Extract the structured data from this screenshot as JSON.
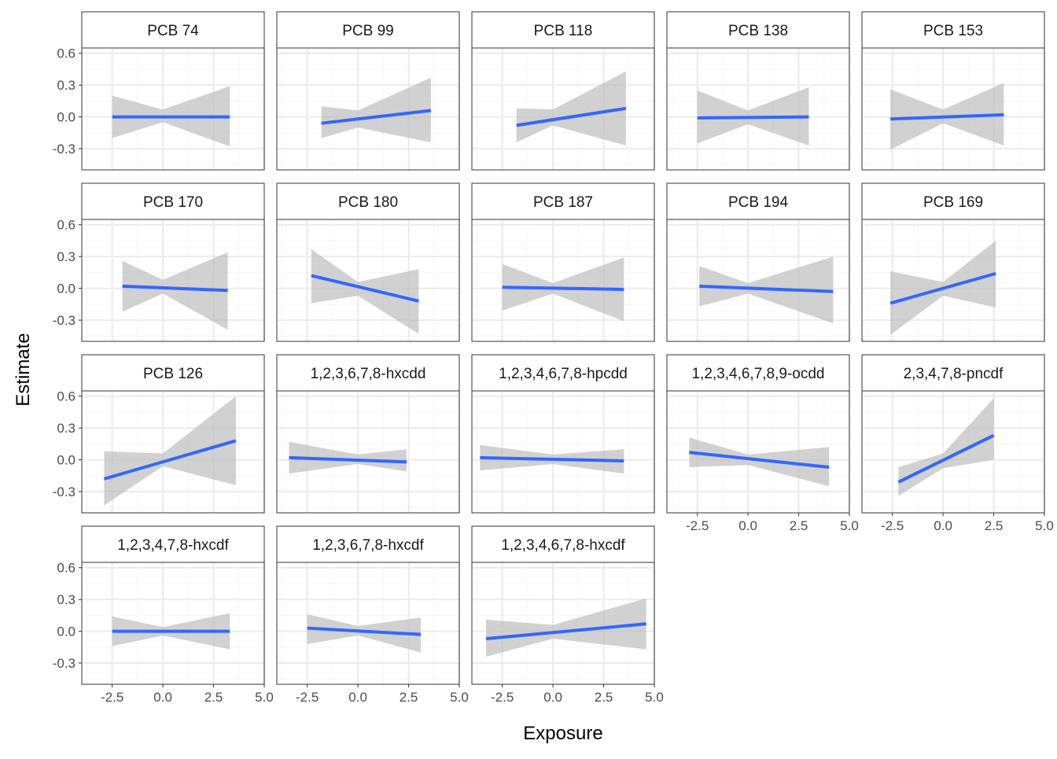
{
  "chart_data": {
    "type": "line",
    "layout": "faceted grid, 5 columns x 4 rows, shared axes",
    "xlabel": "Exposure",
    "ylabel": "Estimate",
    "xlim": [
      -4,
      5
    ],
    "ylim": [
      -0.5,
      0.65
    ],
    "x_ticks": [
      -2.5,
      0.0,
      2.5,
      5.0
    ],
    "x_tick_labels": [
      "-2.5",
      "0.0",
      "2.5",
      "5.0"
    ],
    "y_ticks": [
      -0.3,
      0.0,
      0.3,
      0.6
    ],
    "y_tick_labels": [
      "-0.3",
      "0.0",
      "0.3",
      "0.6"
    ],
    "grid": true,
    "colors": {
      "line": "#3366ff",
      "ribbon": "#bdbdbd",
      "strip_bg": "#ffffff",
      "panel_border": "#333333",
      "grid_major": "#ebebeb",
      "grid_minor": "#f5f5f5"
    },
    "panels": [
      {
        "title": "PCB 74",
        "x": [
          -2.5,
          3.3
        ],
        "y": [
          0.0,
          0.0
        ],
        "lower": [
          [
            -2.5,
            -0.2
          ],
          [
            0.0,
            -0.05
          ],
          [
            3.3,
            -0.28
          ]
        ],
        "upper": [
          [
            -2.5,
            0.2
          ],
          [
            0.0,
            0.07
          ],
          [
            3.3,
            0.29
          ]
        ]
      },
      {
        "title": "PCB 99",
        "x": [
          -1.8,
          3.6
        ],
        "y": [
          -0.06,
          0.06
        ],
        "lower": [
          [
            -1.8,
            -0.2
          ],
          [
            0.0,
            -0.1
          ],
          [
            3.6,
            -0.24
          ]
        ],
        "upper": [
          [
            -1.8,
            0.1
          ],
          [
            0.0,
            0.06
          ],
          [
            3.6,
            0.37
          ]
        ]
      },
      {
        "title": "PCB 118",
        "x": [
          -1.8,
          3.6
        ],
        "y": [
          -0.08,
          0.08
        ],
        "lower": [
          [
            -1.8,
            -0.24
          ],
          [
            0.0,
            -0.08
          ],
          [
            3.6,
            -0.27
          ]
        ],
        "upper": [
          [
            -1.8,
            0.08
          ],
          [
            0.0,
            0.07
          ],
          [
            3.6,
            0.43
          ]
        ]
      },
      {
        "title": "PCB 138",
        "x": [
          -2.5,
          3.0
        ],
        "y": [
          -0.01,
          0.0
        ],
        "lower": [
          [
            -2.5,
            -0.25
          ],
          [
            0.0,
            -0.07
          ],
          [
            3.0,
            -0.27
          ]
        ],
        "upper": [
          [
            -2.5,
            0.25
          ],
          [
            0.0,
            0.06
          ],
          [
            3.0,
            0.28
          ]
        ]
      },
      {
        "title": "PCB 153",
        "x": [
          -2.6,
          3.0
        ],
        "y": [
          -0.02,
          0.02
        ],
        "lower": [
          [
            -2.6,
            -0.31
          ],
          [
            0.0,
            -0.06
          ],
          [
            3.0,
            -0.27
          ]
        ],
        "upper": [
          [
            -2.6,
            0.26
          ],
          [
            0.0,
            0.07
          ],
          [
            3.0,
            0.32
          ]
        ]
      },
      {
        "title": "PCB 170",
        "x": [
          -2.0,
          3.2
        ],
        "y": [
          0.02,
          -0.02
        ],
        "lower": [
          [
            -2.0,
            -0.22
          ],
          [
            0.0,
            -0.05
          ],
          [
            3.2,
            -0.39
          ]
        ],
        "upper": [
          [
            -2.0,
            0.26
          ],
          [
            0.0,
            0.08
          ],
          [
            3.2,
            0.34
          ]
        ]
      },
      {
        "title": "PCB 180",
        "x": [
          -2.3,
          3.0
        ],
        "y": [
          0.12,
          -0.12
        ],
        "lower": [
          [
            -2.3,
            -0.14
          ],
          [
            0.0,
            -0.07
          ],
          [
            3.0,
            -0.43
          ]
        ],
        "upper": [
          [
            -2.3,
            0.37
          ],
          [
            0.0,
            0.06
          ],
          [
            3.0,
            0.18
          ]
        ]
      },
      {
        "title": "PCB 187",
        "x": [
          -2.5,
          3.5
        ],
        "y": [
          0.01,
          -0.01
        ],
        "lower": [
          [
            -2.5,
            -0.21
          ],
          [
            0.0,
            -0.05
          ],
          [
            3.5,
            -0.31
          ]
        ],
        "upper": [
          [
            -2.5,
            0.23
          ],
          [
            0.0,
            0.05
          ],
          [
            3.5,
            0.29
          ]
        ]
      },
      {
        "title": "PCB 194",
        "x": [
          -2.4,
          4.2
        ],
        "y": [
          0.02,
          -0.03
        ],
        "lower": [
          [
            -2.4,
            -0.17
          ],
          [
            0.0,
            -0.05
          ],
          [
            4.2,
            -0.33
          ]
        ],
        "upper": [
          [
            -2.4,
            0.21
          ],
          [
            0.0,
            0.05
          ],
          [
            4.2,
            0.3
          ]
        ]
      },
      {
        "title": "PCB 169",
        "x": [
          -2.6,
          2.6
        ],
        "y": [
          -0.14,
          0.14
        ],
        "lower": [
          [
            -2.6,
            -0.44
          ],
          [
            0.0,
            -0.07
          ],
          [
            2.6,
            -0.18
          ]
        ],
        "upper": [
          [
            -2.6,
            0.16
          ],
          [
            0.0,
            0.06
          ],
          [
            2.6,
            0.45
          ]
        ]
      },
      {
        "title": "PCB 126",
        "x": [
          -2.9,
          3.6
        ],
        "y": [
          -0.18,
          0.18
        ],
        "lower": [
          [
            -2.9,
            -0.43
          ],
          [
            0.0,
            -0.06
          ],
          [
            3.6,
            -0.24
          ]
        ],
        "upper": [
          [
            -2.9,
            0.08
          ],
          [
            0.0,
            0.06
          ],
          [
            3.6,
            0.6
          ]
        ]
      },
      {
        "title": "1,2,3,6,7,8-hxcdd",
        "x": [
          -3.4,
          2.4
        ],
        "y": [
          0.02,
          -0.02
        ],
        "lower": [
          [
            -3.4,
            -0.13
          ],
          [
            0.0,
            -0.04
          ],
          [
            2.4,
            -0.11
          ]
        ],
        "upper": [
          [
            -3.4,
            0.17
          ],
          [
            0.0,
            0.05
          ],
          [
            2.4,
            0.1
          ]
        ]
      },
      {
        "title": "1,2,3,4,6,7,8-hpcdd",
        "x": [
          -3.6,
          3.5
        ],
        "y": [
          0.02,
          -0.01
        ],
        "lower": [
          [
            -3.6,
            -0.1
          ],
          [
            0.0,
            -0.04
          ],
          [
            3.5,
            -0.13
          ]
        ],
        "upper": [
          [
            -3.6,
            0.14
          ],
          [
            0.0,
            0.05
          ],
          [
            3.5,
            0.1
          ]
        ]
      },
      {
        "title": "1,2,3,4,6,7,8,9-ocdd",
        "x": [
          -2.9,
          4.0
        ],
        "y": [
          0.07,
          -0.07
        ],
        "lower": [
          [
            -2.9,
            -0.07
          ],
          [
            0.0,
            -0.05
          ],
          [
            4.0,
            -0.25
          ]
        ],
        "upper": [
          [
            -2.9,
            0.21
          ],
          [
            0.0,
            0.05
          ],
          [
            4.0,
            0.12
          ]
        ]
      },
      {
        "title": "2,3,4,7,8-pncdf",
        "x": [
          -2.2,
          2.5
        ],
        "y": [
          -0.21,
          0.23
        ],
        "lower": [
          [
            -2.2,
            -0.34
          ],
          [
            0.0,
            -0.08
          ],
          [
            2.5,
            0.0
          ]
        ],
        "upper": [
          [
            -2.2,
            -0.07
          ],
          [
            0.0,
            0.06
          ],
          [
            2.5,
            0.58
          ]
        ]
      },
      {
        "title": "1,2,3,4,7,8-hxcdf",
        "x": [
          -2.5,
          3.3
        ],
        "y": [
          0.0,
          0.0
        ],
        "lower": [
          [
            -2.5,
            -0.14
          ],
          [
            0.0,
            -0.04
          ],
          [
            3.3,
            -0.17
          ]
        ],
        "upper": [
          [
            -2.5,
            0.14
          ],
          [
            0.0,
            0.04
          ],
          [
            3.3,
            0.17
          ]
        ]
      },
      {
        "title": "1,2,3,6,7,8-hxcdf",
        "x": [
          -2.5,
          3.1
        ],
        "y": [
          0.03,
          -0.03
        ],
        "lower": [
          [
            -2.5,
            -0.12
          ],
          [
            0.0,
            -0.04
          ],
          [
            3.1,
            -0.2
          ]
        ],
        "upper": [
          [
            -2.5,
            0.16
          ],
          [
            0.0,
            0.05
          ],
          [
            3.1,
            0.13
          ]
        ]
      },
      {
        "title": "1,2,3,4,6,7,8-hxcdf",
        "x": [
          -3.3,
          4.6
        ],
        "y": [
          -0.07,
          0.07
        ],
        "lower": [
          [
            -3.3,
            -0.24
          ],
          [
            0.0,
            -0.07
          ],
          [
            4.6,
            -0.17
          ]
        ],
        "upper": [
          [
            -3.3,
            0.11
          ],
          [
            0.0,
            0.06
          ],
          [
            4.6,
            0.31
          ]
        ]
      }
    ]
  }
}
